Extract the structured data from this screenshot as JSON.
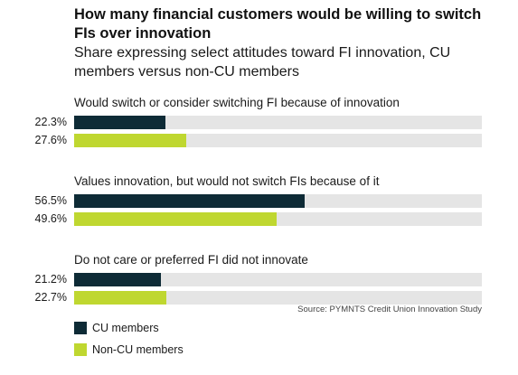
{
  "chart_data": {
    "type": "bar",
    "orientation": "horizontal",
    "title": "How many financial customers would be willing to switch FIs over innovation",
    "subtitle": "Share expressing select attitudes toward FI innovation, CU members versus non-CU members",
    "categories": [
      "Would switch or consider switching FI because of innovation",
      "Values innovation, but would not switch FIs because of it",
      "Do not care or preferred FI did not innovate"
    ],
    "series": [
      {
        "name": "CU members",
        "color": "#0e2b36",
        "values": [
          22.3,
          56.5,
          21.2
        ],
        "labels": [
          "22.3%",
          "56.5%",
          "21.2%"
        ]
      },
      {
        "name": "Non-CU members",
        "color": "#bfd730",
        "values": [
          27.6,
          49.6,
          22.7
        ],
        "labels": [
          "27.6%",
          "49.6%",
          "22.7%"
        ]
      }
    ],
    "xlim": [
      0,
      100
    ],
    "track_color": "#e5e5e5",
    "legend_placement": "bottom-left",
    "source": "Source: PYMNTS Credit Union Innovation Study"
  }
}
